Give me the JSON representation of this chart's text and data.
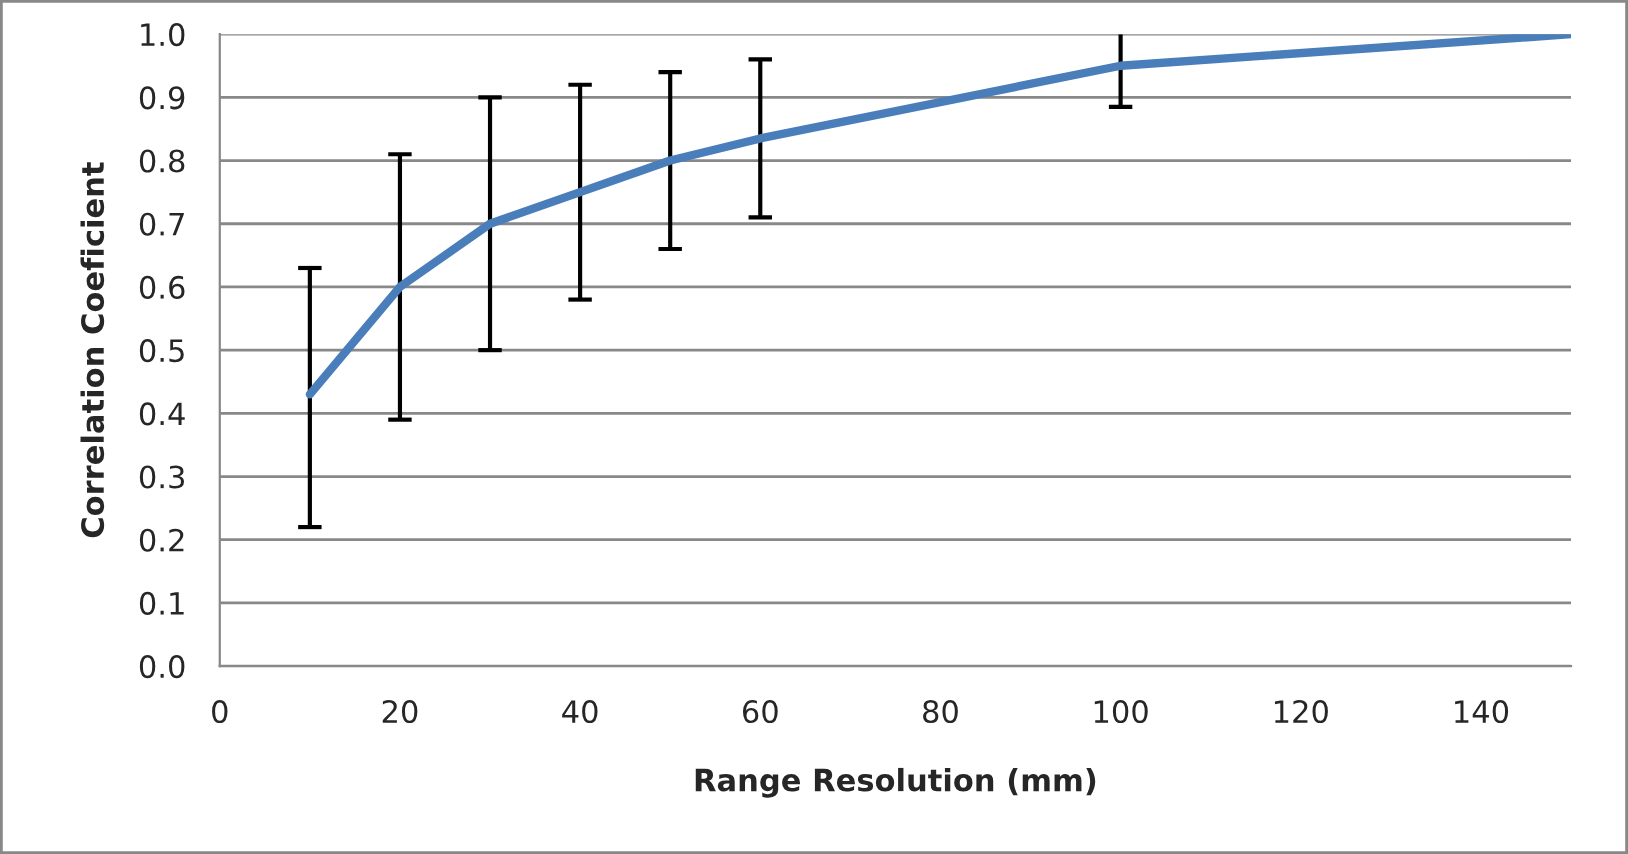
{
  "chart_data": {
    "type": "line",
    "xlabel": "Range Resolution (mm)",
    "ylabel": "Correlation Coeficient",
    "xlim": [
      0,
      150
    ],
    "xticks": [
      0,
      20,
      40,
      60,
      80,
      100,
      120,
      140
    ],
    "ylim": [
      0,
      1.0
    ],
    "yticks": [
      {
        "value": 0,
        "label": "0.0"
      },
      0.1,
      0.2,
      0.3,
      0.4,
      0.5,
      0.6,
      0.7,
      0.8,
      0.9,
      {
        "value": 1.0,
        "label": "1.0"
      }
    ],
    "grid": "y",
    "marker": "none",
    "line_style": "solid",
    "series": [
      {
        "color": "#4a7ebb",
        "x": [
          10,
          20,
          30,
          40,
          50,
          60,
          100,
          150
        ],
        "values": [
          0.43,
          0.6,
          0.7,
          0.75,
          0.8,
          0.835,
          0.95,
          1.0
        ],
        "errors": [
          [
            0.22,
            0.63
          ],
          [
            0.39,
            0.81
          ],
          [
            0.5,
            0.9
          ],
          [
            0.58,
            0.92
          ],
          [
            0.66,
            0.94
          ],
          [
            0.71,
            0.96
          ],
          [
            0.885,
            1.0
          ],
          null
        ]
      }
    ]
  }
}
